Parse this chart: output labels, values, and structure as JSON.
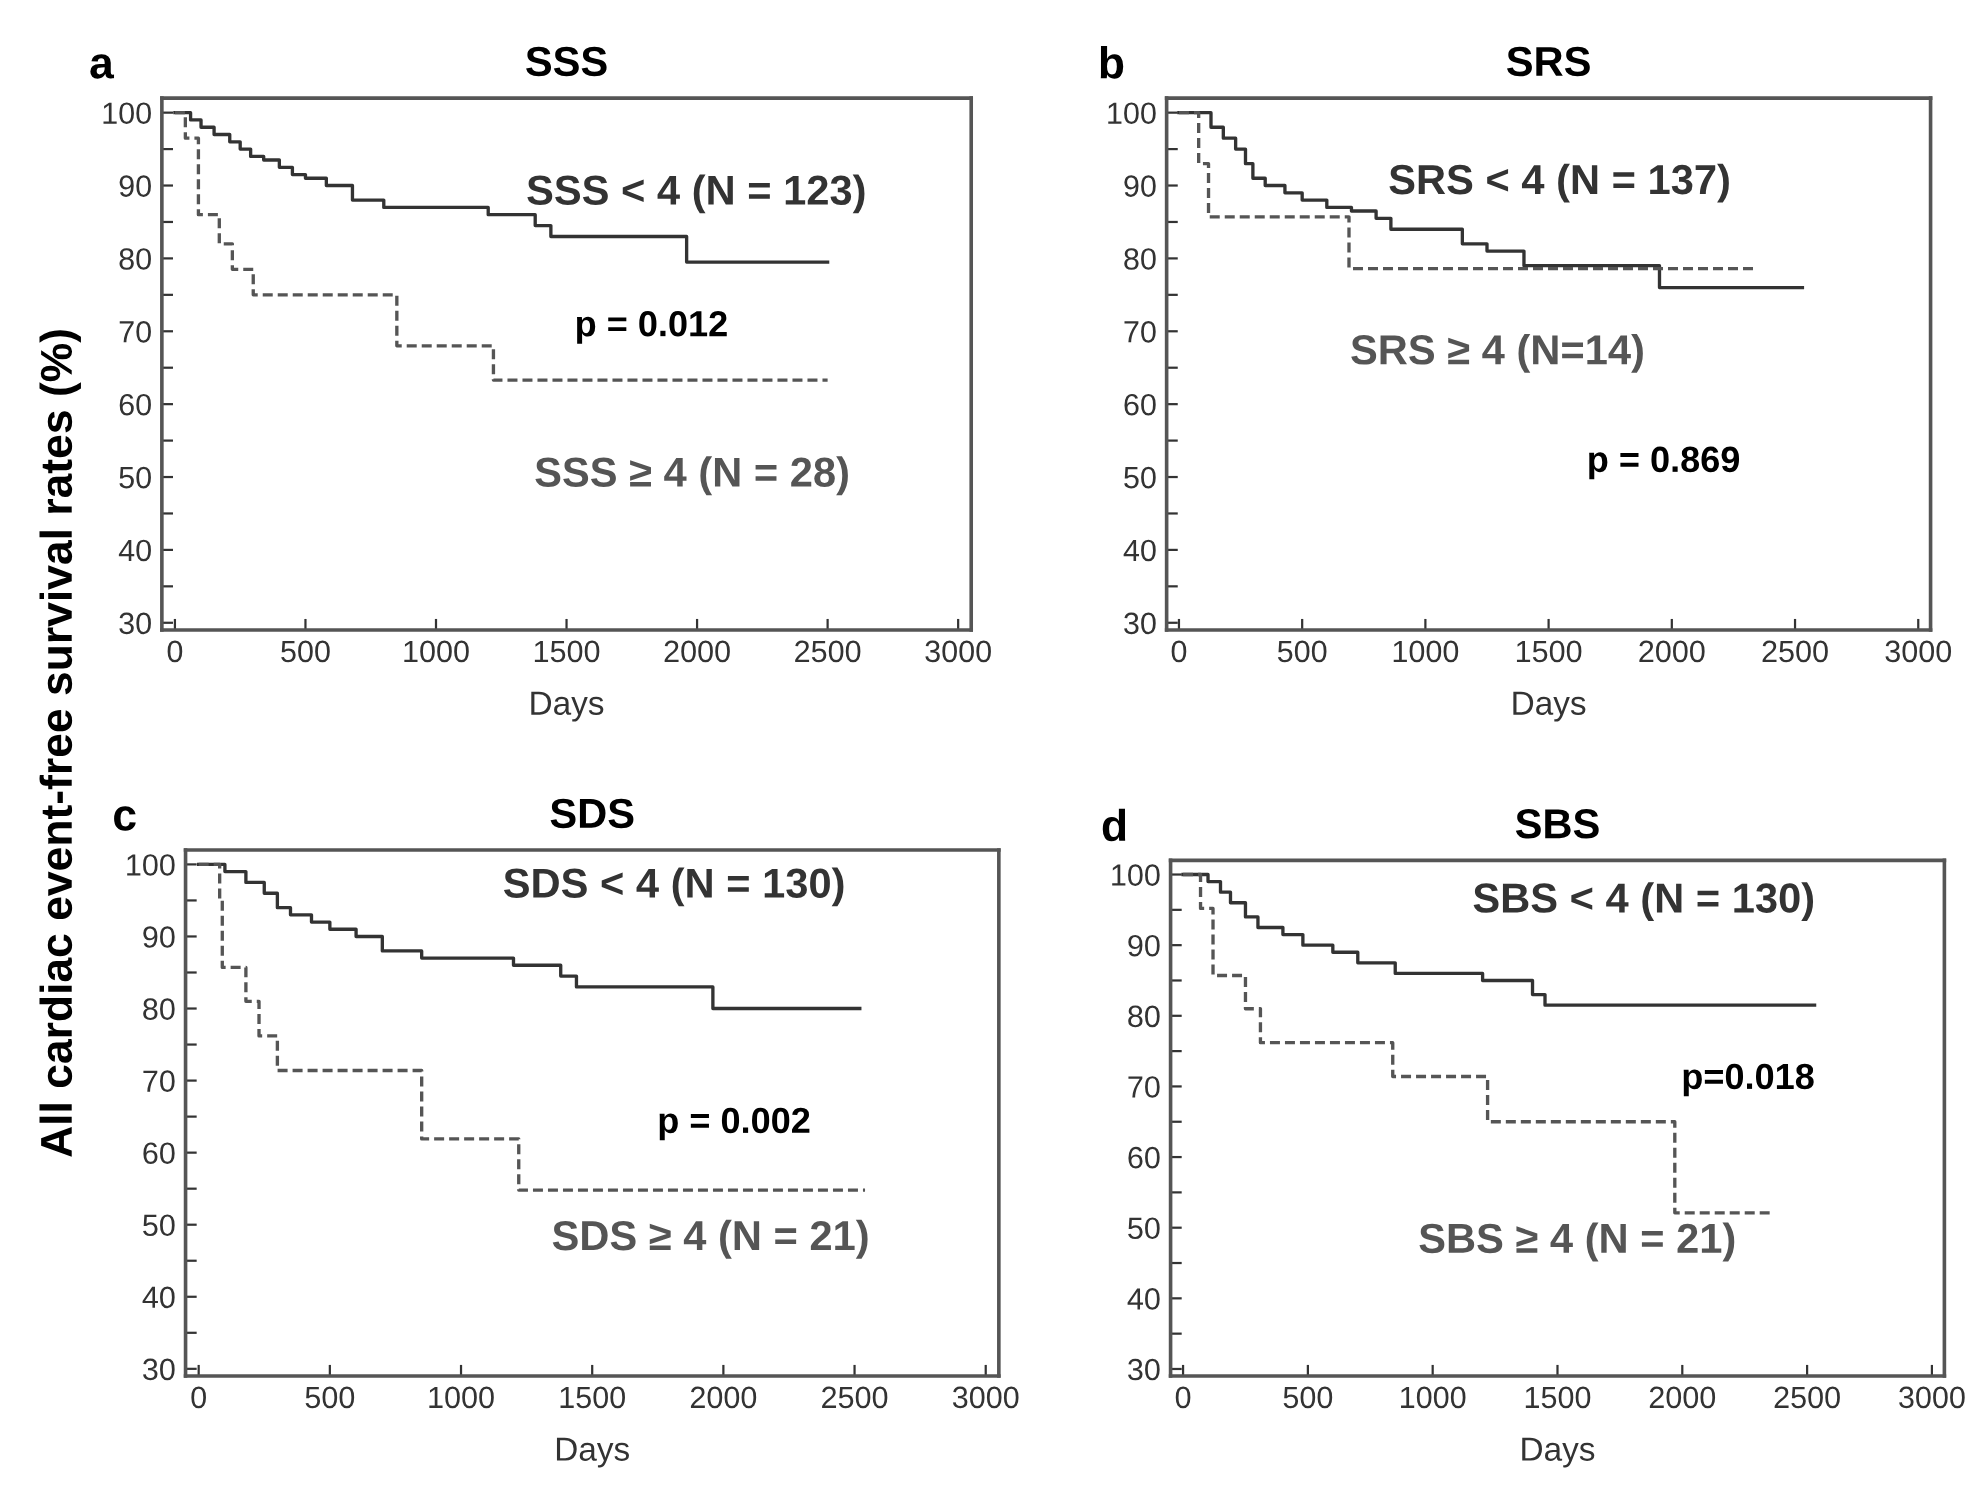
{
  "chart_data": [
    {
      "type": "step",
      "title": "SSS",
      "ylabel": "All cardiac event-free survival rates (%)",
      "xlabel": "Days",
      "annotations": [
        "a",
        "p = 0.012"
      ],
      "xlim": [
        -50,
        3050
      ],
      "ylim": [
        29,
        102
      ],
      "xticks": [
        0,
        500,
        1000,
        1500,
        2000,
        2500,
        3000
      ],
      "yticks": [
        30,
        {
          "value": 35,
          "label": null
        },
        40,
        {
          "value": 45,
          "label": null
        },
        50,
        {
          "value": 55,
          "label": null
        },
        60,
        {
          "value": 65,
          "label": null
        },
        70,
        {
          "value": 75,
          "label": null
        },
        80,
        {
          "value": 85,
          "label": null
        },
        90,
        {
          "value": 95,
          "label": null
        },
        100
      ],
      "grid": false,
      "legend": false,
      "series": [
        {
          "name": "SSS < 4 (N = 123)",
          "color": "#333333",
          "line_style": "solid",
          "x": [
            0,
            60,
            100,
            150,
            210,
            250,
            290,
            340,
            400,
            450,
            500,
            580,
            680,
            800,
            1200,
            1380,
            1440,
            1960,
            2500
          ],
          "values": [
            100,
            99,
            98,
            97,
            96,
            95,
            94,
            93.5,
            92.5,
            91.5,
            91,
            90,
            88,
            87,
            86,
            84.5,
            83,
            79.5,
            79.5
          ]
        },
        {
          "name": "SSS ≥ 4 (N = 28)",
          "color": "#555555",
          "line_style": "dashed",
          "x": [
            0,
            40,
            90,
            170,
            220,
            300,
            850,
            1220,
            2500
          ],
          "values": [
            100,
            96.5,
            86,
            82,
            78.5,
            75,
            68,
            63.3,
            63.3
          ]
        }
      ]
    },
    {
      "type": "step",
      "title": "SRS",
      "xlabel": "Days",
      "annotations": [
        "b",
        "p = 0.869"
      ],
      "xlim": [
        -50,
        3050
      ],
      "ylim": [
        29,
        102
      ],
      "xticks": [
        0,
        500,
        1000,
        1500,
        2000,
        2500,
        3000
      ],
      "yticks": [
        30,
        {
          "value": 35,
          "label": null
        },
        40,
        {
          "value": 45,
          "label": null
        },
        50,
        {
          "value": 55,
          "label": null
        },
        60,
        {
          "value": 65,
          "label": null
        },
        70,
        {
          "value": 75,
          "label": null
        },
        80,
        {
          "value": 85,
          "label": null
        },
        90,
        {
          "value": 95,
          "label": null
        },
        100
      ],
      "grid": false,
      "legend": false,
      "series": [
        {
          "name": "SRS < 4 (N = 137)",
          "color": "#333333",
          "line_style": "solid",
          "x": [
            0,
            130,
            180,
            230,
            270,
            300,
            350,
            430,
            500,
            600,
            700,
            800,
            860,
            1150,
            1250,
            1400,
            1950,
            2530
          ],
          "values": [
            100,
            98,
            96.5,
            95,
            93,
            91,
            90,
            89,
            88,
            87,
            86.5,
            85.5,
            84,
            82,
            81,
            79,
            76,
            76
          ]
        },
        {
          "name": "SRS ≥ 4 (N=14)",
          "color": "#555555",
          "line_style": "dashed",
          "x": [
            0,
            80,
            120,
            690,
            2340
          ],
          "values": [
            100,
            93,
            85.7,
            78.6,
            78.6
          ]
        }
      ]
    },
    {
      "type": "step",
      "title": "SDS",
      "xlabel": "Days",
      "annotations": [
        "c",
        "p = 0.002"
      ],
      "xlim": [
        -50,
        3050
      ],
      "ylim": [
        29,
        102
      ],
      "xticks": [
        0,
        500,
        1000,
        1500,
        2000,
        2500,
        3000
      ],
      "yticks": [
        30,
        {
          "value": 35,
          "label": null
        },
        40,
        {
          "value": 45,
          "label": null
        },
        50,
        {
          "value": 55,
          "label": null
        },
        60,
        {
          "value": 65,
          "label": null
        },
        70,
        {
          "value": 75,
          "label": null
        },
        80,
        {
          "value": 85,
          "label": null
        },
        90,
        {
          "value": 95,
          "label": null
        },
        100
      ],
      "grid": false,
      "legend": false,
      "series": [
        {
          "name": "SDS < 4 (N = 130)",
          "color": "#333333",
          "line_style": "solid",
          "x": [
            0,
            100,
            180,
            250,
            300,
            350,
            430,
            500,
            600,
            700,
            850,
            1200,
            1380,
            1440,
            1960,
            2520
          ],
          "values": [
            100,
            99,
            97.5,
            96,
            94,
            93,
            92,
            91,
            90,
            88,
            87,
            86,
            84.5,
            83,
            80,
            80
          ]
        },
        {
          "name": "SDS ≥ 4 (N = 21)",
          "color": "#555555",
          "line_style": "dashed",
          "x": [
            0,
            80,
            90,
            180,
            230,
            300,
            850,
            1220,
            2540
          ],
          "values": [
            100,
            95,
            85.7,
            81,
            76.2,
            71.4,
            61.9,
            54.8,
            54.8
          ]
        }
      ]
    },
    {
      "type": "step",
      "title": "SBS",
      "xlabel": "Days",
      "annotations": [
        "d",
        "p=0.018"
      ],
      "xlim": [
        -50,
        3050
      ],
      "ylim": [
        29,
        102
      ],
      "xticks": [
        0,
        500,
        1000,
        1500,
        2000,
        2500,
        3000
      ],
      "yticks": [
        30,
        {
          "value": 35,
          "label": null
        },
        40,
        {
          "value": 45,
          "label": null
        },
        50,
        {
          "value": 55,
          "label": null
        },
        60,
        {
          "value": 65,
          "label": null
        },
        70,
        {
          "value": 75,
          "label": null
        },
        80,
        {
          "value": 85,
          "label": null
        },
        90,
        {
          "value": 95,
          "label": null
        },
        100
      ],
      "grid": false,
      "legend": false,
      "series": [
        {
          "name": "SBS < 4 (N = 130)",
          "color": "#333333",
          "line_style": "solid",
          "x": [
            0,
            100,
            150,
            190,
            250,
            300,
            400,
            480,
            600,
            700,
            850,
            1200,
            1400,
            1450,
            2530
          ],
          "values": [
            100,
            99,
            97.5,
            96,
            94,
            92.5,
            91.5,
            90,
            89,
            87.5,
            86,
            85,
            83,
            81.5,
            81.5
          ]
        },
        {
          "name": "SBS ≥ 4 (N = 21)",
          "color": "#555555",
          "line_style": "dashed",
          "x": [
            0,
            70,
            120,
            250,
            310,
            840,
            1220,
            1970,
            2350
          ],
          "values": [
            100,
            95.2,
            85.7,
            81,
            76.2,
            71.4,
            65,
            52.1,
            52.1
          ]
        }
      ]
    }
  ]
}
